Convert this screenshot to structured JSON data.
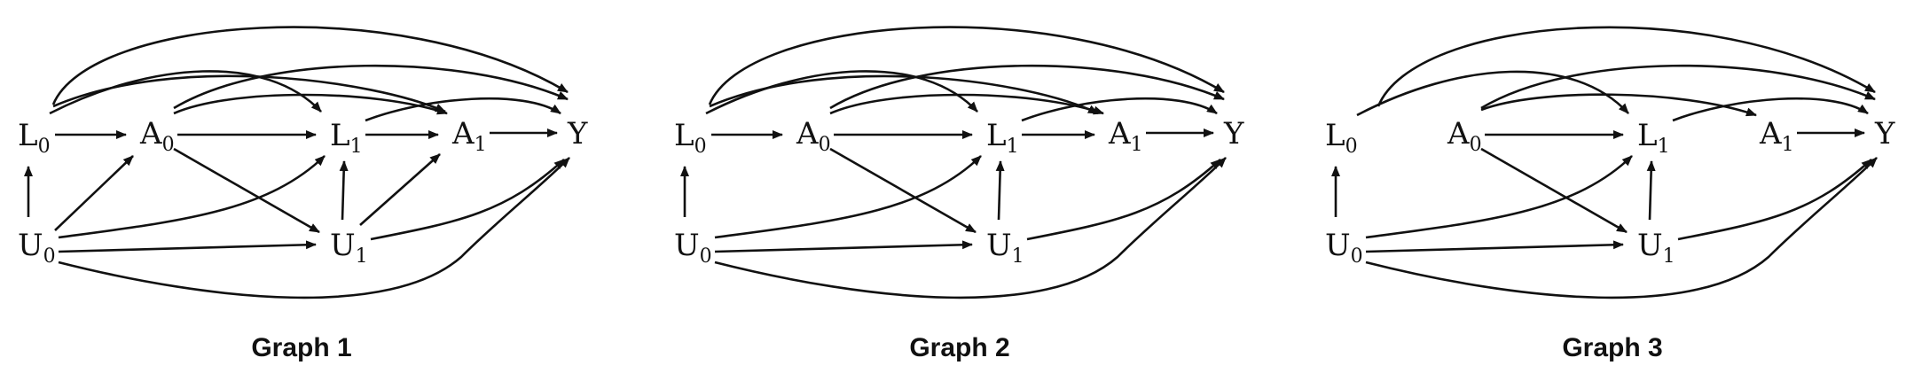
{
  "diagram": {
    "type": "directed-acyclic-graphs",
    "graphs": [
      {
        "id": "graph1",
        "title": "Graph 1",
        "nodes": [
          {
            "id": "L0",
            "label": "L",
            "sub": "0"
          },
          {
            "id": "A0",
            "label": "A",
            "sub": "0"
          },
          {
            "id": "L1",
            "label": "L",
            "sub": "1"
          },
          {
            "id": "A1",
            "label": "A",
            "sub": "1"
          },
          {
            "id": "Y",
            "label": "Y",
            "sub": ""
          },
          {
            "id": "U0",
            "label": "U",
            "sub": "0"
          },
          {
            "id": "U1",
            "label": "U",
            "sub": "1"
          }
        ],
        "edges": [
          [
            "U0",
            "L0"
          ],
          [
            "L0",
            "A0"
          ],
          [
            "A0",
            "L1"
          ],
          [
            "L1",
            "A1"
          ],
          [
            "A1",
            "Y"
          ],
          [
            "U0",
            "A0"
          ],
          [
            "U0",
            "L1"
          ],
          [
            "U0",
            "U1"
          ],
          [
            "U0",
            "Y"
          ],
          [
            "A0",
            "U1"
          ],
          [
            "U1",
            "L1"
          ],
          [
            "U1",
            "A1"
          ],
          [
            "U1",
            "Y"
          ],
          [
            "L0",
            "L1"
          ],
          [
            "L0",
            "A1"
          ],
          [
            "L0",
            "Y"
          ],
          [
            "A0",
            "A1"
          ],
          [
            "A0",
            "Y"
          ],
          [
            "L1",
            "Y"
          ]
        ]
      },
      {
        "id": "graph2",
        "title": "Graph 2",
        "nodes": [
          {
            "id": "L0",
            "label": "L",
            "sub": "0"
          },
          {
            "id": "A0",
            "label": "A",
            "sub": "0"
          },
          {
            "id": "L1",
            "label": "L",
            "sub": "1"
          },
          {
            "id": "A1",
            "label": "A",
            "sub": "1"
          },
          {
            "id": "Y",
            "label": "Y",
            "sub": ""
          },
          {
            "id": "U0",
            "label": "U",
            "sub": "0"
          },
          {
            "id": "U1",
            "label": "U",
            "sub": "1"
          }
        ],
        "edges": [
          [
            "U0",
            "L0"
          ],
          [
            "L0",
            "A0"
          ],
          [
            "A0",
            "L1"
          ],
          [
            "L1",
            "A1"
          ],
          [
            "A1",
            "Y"
          ],
          [
            "U0",
            "L1"
          ],
          [
            "U0",
            "U1"
          ],
          [
            "U0",
            "Y"
          ],
          [
            "A0",
            "U1"
          ],
          [
            "U1",
            "L1"
          ],
          [
            "U1",
            "Y"
          ],
          [
            "L0",
            "L1"
          ],
          [
            "L0",
            "A1"
          ],
          [
            "L0",
            "Y"
          ],
          [
            "A0",
            "A1"
          ],
          [
            "A0",
            "Y"
          ],
          [
            "L1",
            "Y"
          ]
        ]
      },
      {
        "id": "graph3",
        "title": "Graph 3",
        "nodes": [
          {
            "id": "L0",
            "label": "L",
            "sub": "0"
          },
          {
            "id": "A0",
            "label": "A",
            "sub": "0"
          },
          {
            "id": "L1",
            "label": "L",
            "sub": "1"
          },
          {
            "id": "A1",
            "label": "A",
            "sub": "1"
          },
          {
            "id": "Y",
            "label": "Y",
            "sub": ""
          },
          {
            "id": "U0",
            "label": "U",
            "sub": "0"
          },
          {
            "id": "U1",
            "label": "U",
            "sub": "1"
          }
        ],
        "edges": [
          [
            "U0",
            "L0"
          ],
          [
            "A0",
            "L1"
          ],
          [
            "A1",
            "Y"
          ],
          [
            "U0",
            "L1"
          ],
          [
            "U0",
            "U1"
          ],
          [
            "U0",
            "Y"
          ],
          [
            "A0",
            "U1"
          ],
          [
            "U1",
            "L1"
          ],
          [
            "U1",
            "Y"
          ],
          [
            "L0",
            "L1"
          ],
          [
            "L0",
            "Y"
          ],
          [
            "A0",
            "A1"
          ],
          [
            "A0",
            "Y"
          ],
          [
            "L1",
            "Y"
          ]
        ]
      }
    ]
  }
}
